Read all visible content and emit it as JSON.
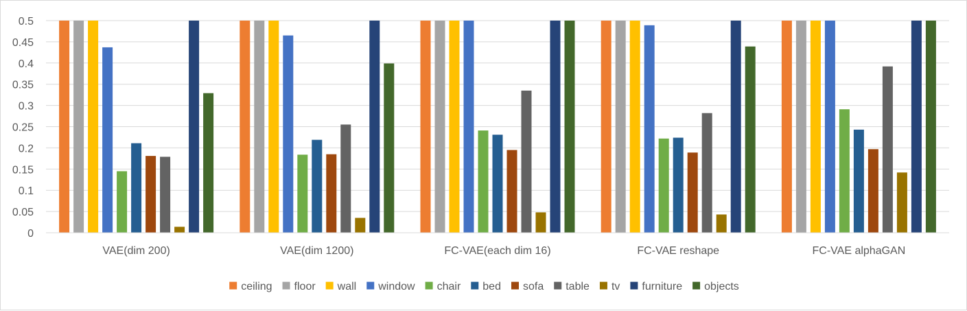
{
  "chart_data": {
    "type": "bar",
    "title": "",
    "xlabel": "",
    "ylabel": "",
    "ylim": [
      0,
      0.5
    ],
    "yticks": [
      0,
      0.05,
      0.1,
      0.15,
      0.2,
      0.25,
      0.3,
      0.35,
      0.4,
      0.45,
      0.5
    ],
    "grid": true,
    "legend_position": "bottom",
    "categories": [
      "VAE(dim 200)",
      "VAE(dim 1200)",
      "FC-VAE(each dim 16)",
      "FC-VAE reshape",
      "FC-VAE alphaGAN"
    ],
    "series": [
      {
        "name": "ceiling",
        "color": "#ED7D31",
        "values": [
          0.5,
          0.5,
          0.5,
          0.5,
          0.5
        ]
      },
      {
        "name": "floor",
        "color": "#A5A5A5",
        "values": [
          0.5,
          0.5,
          0.5,
          0.5,
          0.5
        ]
      },
      {
        "name": "wall",
        "color": "#FFC000",
        "values": [
          0.5,
          0.5,
          0.5,
          0.5,
          0.5
        ]
      },
      {
        "name": "window",
        "color": "#4472C4",
        "values": [
          0.437,
          0.465,
          0.5,
          0.489,
          0.5
        ]
      },
      {
        "name": "chair",
        "color": "#70AD47",
        "values": [
          0.145,
          0.184,
          0.241,
          0.222,
          0.291
        ]
      },
      {
        "name": "bed",
        "color": "#255E91",
        "values": [
          0.211,
          0.219,
          0.231,
          0.224,
          0.243
        ]
      },
      {
        "name": "sofa",
        "color": "#9E480E",
        "values": [
          0.181,
          0.185,
          0.195,
          0.189,
          0.197
        ]
      },
      {
        "name": "table",
        "color": "#636363",
        "values": [
          0.179,
          0.255,
          0.335,
          0.282,
          0.392
        ]
      },
      {
        "name": "tv",
        "color": "#997300",
        "values": [
          0.014,
          0.035,
          0.048,
          0.043,
          0.142
        ]
      },
      {
        "name": "furniture",
        "color": "#264478",
        "values": [
          0.5,
          0.5,
          0.5,
          0.5,
          0.5
        ]
      },
      {
        "name": "objects",
        "color": "#43682B",
        "values": [
          0.329,
          0.399,
          0.5,
          0.439,
          0.5
        ]
      }
    ]
  }
}
